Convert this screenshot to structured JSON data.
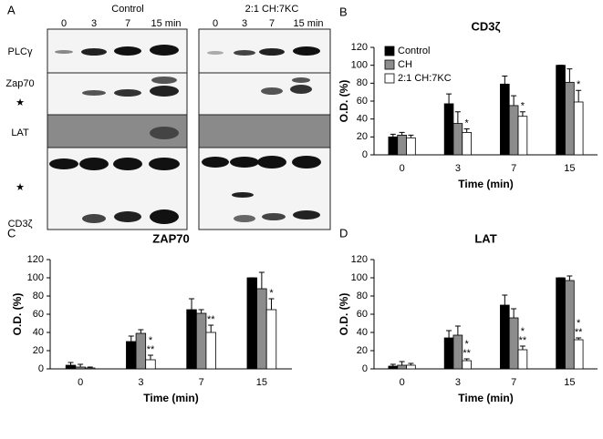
{
  "blot": {
    "panel_label": "A",
    "groups": [
      {
        "title": "Control",
        "lanes": [
          "0",
          "3",
          "7",
          "15 min"
        ]
      },
      {
        "title": "2:1 CH:7KC",
        "lanes": [
          "0",
          "3",
          "7",
          "15 min"
        ]
      }
    ],
    "rows": [
      "PLCγ",
      "Zap70",
      "★",
      "LAT",
      "★",
      "CD3ζ"
    ]
  },
  "chart_data": [
    {
      "type": "bar",
      "panel_label": "B",
      "title": "CD3ζ",
      "xlabel": "Time (min)",
      "ylabel": "O.D. (%)",
      "categories": [
        "0",
        "3",
        "7",
        "15"
      ],
      "ylim": [
        0,
        120
      ],
      "yticks": [
        0,
        20,
        40,
        60,
        80,
        100,
        120
      ],
      "legend": "upper-left",
      "series": [
        {
          "name": "Control",
          "color": "#000000",
          "values": [
            20,
            57,
            79,
            100
          ],
          "errors": [
            3,
            11,
            9,
            0
          ]
        },
        {
          "name": "CH",
          "color": "#8c8c8c",
          "values": [
            22,
            35,
            55,
            81
          ],
          "errors": [
            3,
            13,
            11,
            15
          ]
        },
        {
          "name": "2:1 CH:7KC",
          "color": "#ffffff",
          "values": [
            19,
            25,
            43,
            59
          ],
          "errors": [
            3,
            4,
            5,
            13
          ],
          "significance": [
            null,
            [
              "*"
            ],
            [
              "*"
            ],
            [
              "*"
            ]
          ]
        }
      ]
    },
    {
      "type": "bar",
      "panel_label": "C",
      "title": "ZAP70",
      "xlabel": "Time (min)",
      "ylabel": "O.D. (%)",
      "categories": [
        "0",
        "3",
        "7",
        "15"
      ],
      "ylim": [
        0,
        120
      ],
      "yticks": [
        0,
        20,
        40,
        60,
        80,
        100,
        120
      ],
      "series": [
        {
          "color": "#000000",
          "values": [
            4,
            30,
            65,
            100
          ],
          "errors": [
            3,
            6,
            12,
            0
          ]
        },
        {
          "color": "#8c8c8c",
          "values": [
            2,
            39,
            61,
            88
          ],
          "errors": [
            3,
            4,
            4,
            18
          ]
        },
        {
          "color": "#ffffff",
          "values": [
            1,
            10,
            40,
            65
          ],
          "errors": [
            1,
            5,
            8,
            12
          ],
          "significance": [
            null,
            [
              "*",
              "**"
            ],
            [
              "**"
            ],
            [
              "*"
            ]
          ]
        }
      ]
    },
    {
      "type": "bar",
      "panel_label": "D",
      "title": "LAT",
      "xlabel": "Time (min)",
      "ylabel": "O.D. (%)",
      "categories": [
        "0",
        "3",
        "7",
        "15"
      ],
      "ylim": [
        0,
        120
      ],
      "yticks": [
        0,
        20,
        40,
        60,
        80,
        100,
        120
      ],
      "series": [
        {
          "color": "#000000",
          "values": [
            3,
            34,
            70,
            100
          ],
          "errors": [
            2,
            8,
            11,
            0
          ]
        },
        {
          "color": "#8c8c8c",
          "values": [
            4,
            37,
            56,
            97
          ],
          "errors": [
            4,
            10,
            10,
            5
          ]
        },
        {
          "color": "#ffffff",
          "values": [
            4,
            9,
            21,
            32
          ],
          "errors": [
            2,
            2,
            4,
            2
          ],
          "significance": [
            null,
            [
              "*",
              "**"
            ],
            [
              "*",
              "**"
            ],
            [
              "*",
              "**"
            ]
          ]
        }
      ]
    }
  ]
}
